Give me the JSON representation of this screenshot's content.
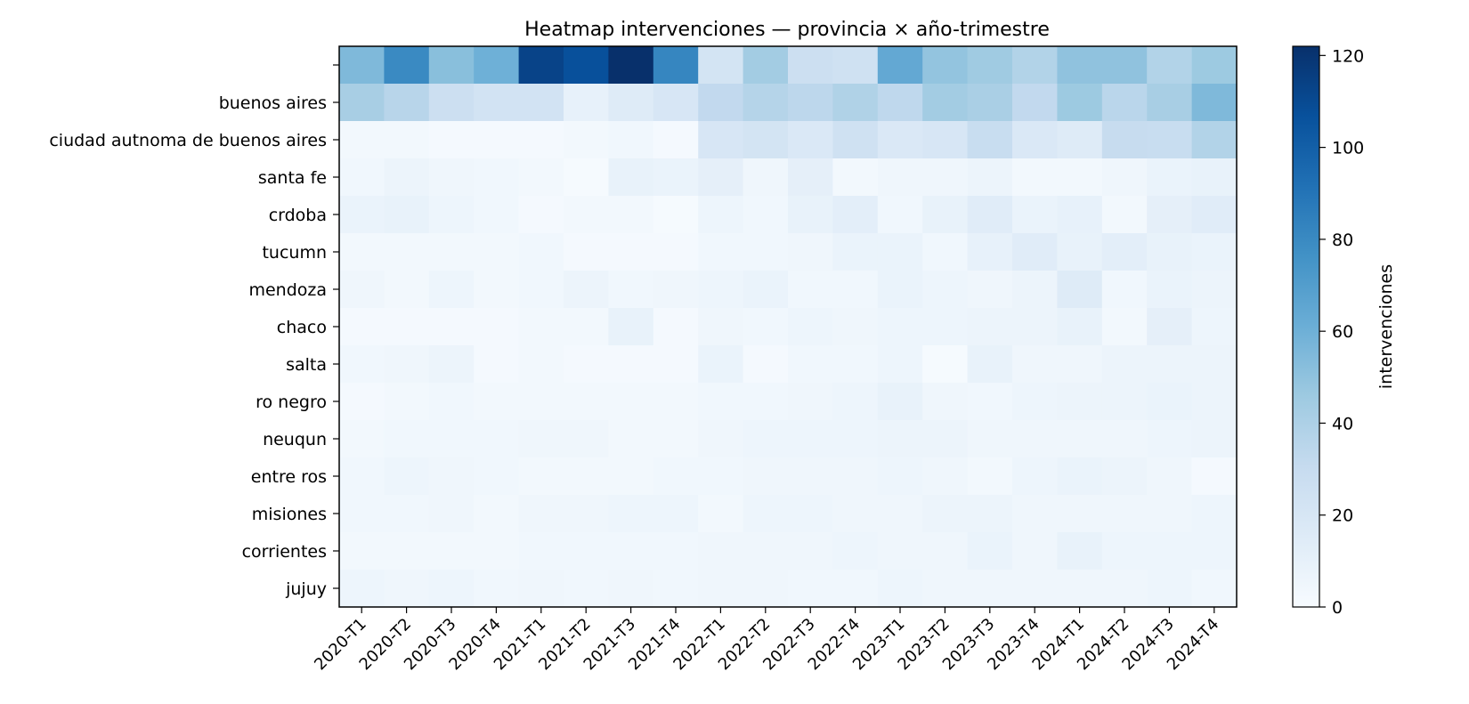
{
  "chart_data": {
    "type": "heatmap",
    "title": "Heatmap intervenciones — provincia × año-trimestre",
    "xlabel": "",
    "ylabel": "",
    "colorbar_label": "intervenciones",
    "colormap": "Blues",
    "vmin": 0,
    "vmax": 122,
    "colorbar_ticks": [
      0,
      20,
      40,
      60,
      80,
      100,
      120
    ],
    "x": [
      "2020-T1",
      "2020-T2",
      "2020-T3",
      "2020-T4",
      "2021-T1",
      "2021-T2",
      "2021-T3",
      "2021-T4",
      "2022-T1",
      "2022-T2",
      "2022-T3",
      "2022-T4",
      "2023-T1",
      "2023-T2",
      "2023-T3",
      "2023-T4",
      "2024-T1",
      "2024-T2",
      "2024-T3",
      "2024-T4"
    ],
    "y": [
      "",
      "buenos aires",
      "ciudad autnoma de buenos aires",
      "santa fe",
      "crdoba",
      "tucumn",
      "mendoza",
      "chaco",
      "salta",
      "ro negro",
      "neuqun",
      "entre ros",
      "misiones",
      "corrientes",
      "jujuy"
    ],
    "z": [
      [
        55,
        80,
        52,
        60,
        113,
        107,
        122,
        82,
        22,
        44,
        27,
        25,
        64,
        49,
        45,
        38,
        50,
        50,
        38,
        46
      ],
      [
        42,
        36,
        27,
        23,
        23,
        10,
        15,
        20,
        32,
        37,
        34,
        39,
        33,
        44,
        41,
        32,
        46,
        35,
        42,
        55
      ],
      [
        3,
        3,
        2,
        2,
        2,
        3,
        4,
        2,
        20,
        22,
        18,
        25,
        18,
        20,
        29,
        18,
        15,
        30,
        29,
        38
      ],
      [
        4,
        7,
        5,
        4,
        3,
        1,
        9,
        8,
        11,
        5,
        11,
        3,
        5,
        5,
        7,
        3,
        3,
        5,
        8,
        9
      ],
      [
        8,
        9,
        6,
        4,
        2,
        3,
        3,
        1,
        6,
        4,
        9,
        12,
        4,
        9,
        14,
        8,
        10,
        3,
        11,
        14
      ],
      [
        3,
        3,
        3,
        3,
        4,
        2,
        2,
        2,
        4,
        4,
        5,
        8,
        8,
        4,
        10,
        14,
        9,
        12,
        9,
        8
      ],
      [
        5,
        3,
        6,
        3,
        4,
        7,
        4,
        5,
        6,
        8,
        4,
        4,
        8,
        6,
        5,
        7,
        15,
        4,
        8,
        7
      ],
      [
        2,
        2,
        2,
        2,
        3,
        3,
        9,
        2,
        5,
        4,
        6,
        5,
        6,
        6,
        7,
        7,
        9,
        3,
        11,
        6
      ],
      [
        4,
        5,
        7,
        2,
        3,
        2,
        2,
        2,
        8,
        2,
        4,
        4,
        6,
        1,
        9,
        5,
        5,
        7,
        7,
        7
      ],
      [
        2,
        3,
        4,
        3,
        3,
        3,
        3,
        3,
        4,
        4,
        5,
        6,
        9,
        5,
        4,
        6,
        7,
        7,
        8,
        7
      ],
      [
        3,
        4,
        4,
        4,
        5,
        5,
        3,
        3,
        5,
        6,
        6,
        6,
        7,
        7,
        5,
        5,
        5,
        5,
        6,
        7
      ],
      [
        4,
        6,
        5,
        4,
        3,
        3,
        3,
        4,
        4,
        5,
        5,
        5,
        6,
        5,
        3,
        6,
        8,
        7,
        5,
        2
      ],
      [
        4,
        4,
        5,
        3,
        5,
        5,
        6,
        6,
        3,
        6,
        6,
        5,
        5,
        7,
        7,
        5,
        5,
        5,
        5,
        6
      ],
      [
        3,
        3,
        3,
        3,
        4,
        4,
        4,
        4,
        5,
        5,
        5,
        6,
        5,
        5,
        8,
        5,
        9,
        6,
        6,
        6
      ],
      [
        6,
        5,
        6,
        4,
        5,
        4,
        5,
        4,
        5,
        5,
        4,
        4,
        6,
        5,
        5,
        5,
        5,
        5,
        6,
        4
      ]
    ]
  }
}
